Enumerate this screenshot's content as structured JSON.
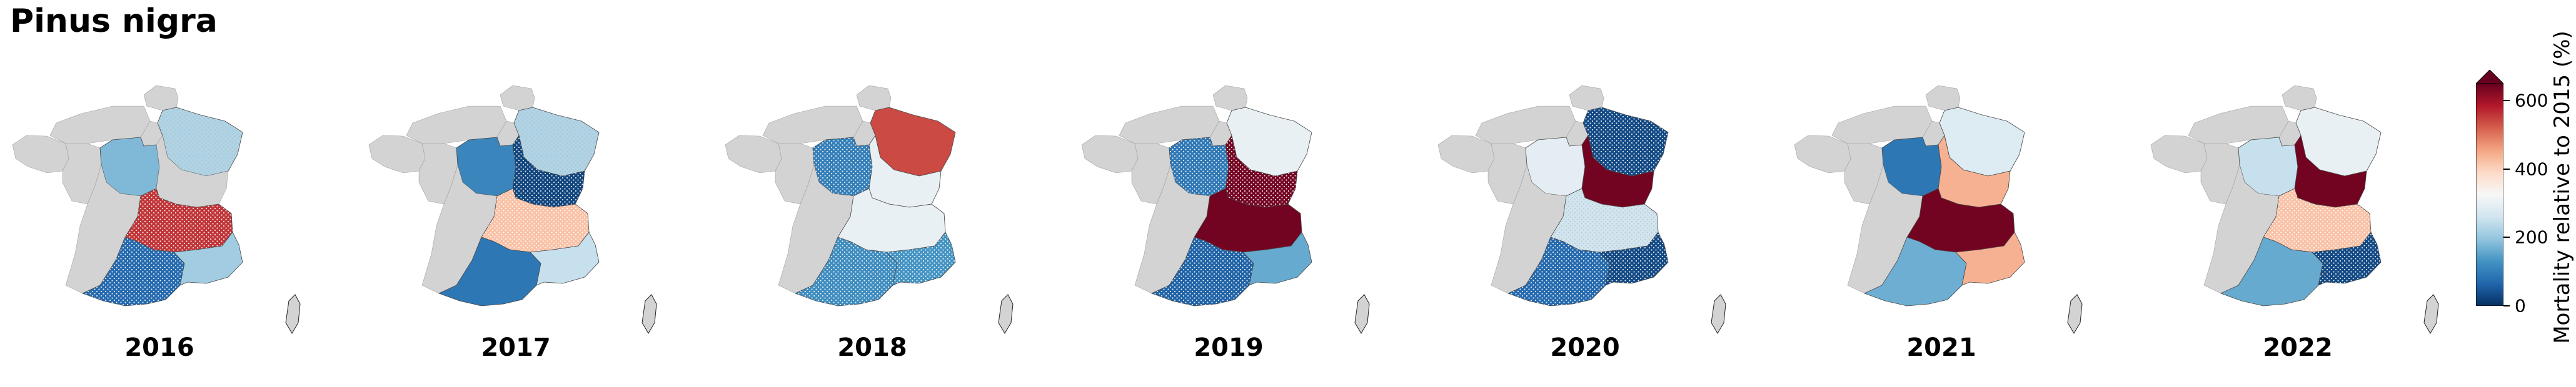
{
  "title": "Pinus nigra",
  "colorbar": {
    "label": "Mortality relative to 2015 (%)",
    "ticks": [
      0,
      200,
      400,
      600
    ],
    "min": 0,
    "max": 650,
    "extend": "max",
    "colormap": [
      "#053061",
      "#2166ac",
      "#4393c3",
      "#92c5de",
      "#d1e5f0",
      "#f7f7f7",
      "#fddbc7",
      "#f4a582",
      "#d6604d",
      "#b2182b",
      "#67001f"
    ]
  },
  "no_data_color": "#d3d3d3",
  "regions": [
    "Grand Est",
    "Centre-Val de Loire",
    "Bourgogne-Franche-Comté",
    "Auvergne-Rhône-Alpes",
    "Nouvelle-Aquitaine",
    "Occitanie",
    "Provence-Alpes-Côte d'Azur"
  ],
  "panels": [
    {
      "year": "2016",
      "values": {
        "Grand Est": 225,
        "Centre-Val de Loire": 180,
        "Bourgogne-Franche-Comté": null,
        "Auvergne-Rhône-Alpes": 560,
        "Nouvelle-Aquitaine": null,
        "Occitanie": 70,
        "Provence-Alpes-Côte d'Azur": 210
      },
      "hatched": [
        "Grand Est",
        "Auvergne-Rhône-Alpes",
        "Occitanie"
      ]
    },
    {
      "year": "2017",
      "values": {
        "Grand Est": 225,
        "Centre-Val de Loire": 110,
        "Bourgogne-Franche-Comté": 25,
        "Auvergne-Rhône-Alpes": 420,
        "Nouvelle-Aquitaine": null,
        "Occitanie": 90,
        "Provence-Alpes-Côte d'Azur": 250
      },
      "hatched": [
        "Grand Est",
        "Bourgogne-Franche-Comté",
        "Auvergne-Rhône-Alpes"
      ]
    },
    {
      "year": "2018",
      "values": {
        "Grand Est": 540,
        "Centre-Val de Loire": 100,
        "Bourgogne-Franche-Comté": 300,
        "Auvergne-Rhône-Alpes": 300,
        "Nouvelle-Aquitaine": null,
        "Occitanie": 120,
        "Provence-Alpes-Côte d'Azur": 130
      },
      "hatched": [
        "Centre-Val de Loire",
        "Occitanie",
        "Provence-Alpes-Côte d'Azur"
      ]
    },
    {
      "year": "2019",
      "values": {
        "Grand Est": 300,
        "Centre-Val de Loire": 90,
        "Bourgogne-Franche-Comté": 640,
        "Auvergne-Rhône-Alpes": 640,
        "Nouvelle-Aquitaine": null,
        "Occitanie": 60,
        "Provence-Alpes-Côte d'Azur": 160
      },
      "hatched": [
        "Centre-Val de Loire",
        "Bourgogne-Franche-Comté",
        "Occitanie"
      ]
    },
    {
      "year": "2020",
      "values": {
        "Grand Est": 30,
        "Centre-Val de Loire": 290,
        "Bourgogne-Franche-Comté": 640,
        "Auvergne-Rhône-Alpes": 260,
        "Nouvelle-Aquitaine": null,
        "Occitanie": 70,
        "Provence-Alpes-Côte d'Azur": 30
      },
      "hatched": [
        "Grand Est",
        "Auvergne-Rhône-Alpes",
        "Occitanie",
        "Provence-Alpes-Côte d'Azur"
      ]
    },
    {
      "year": "2021",
      "values": {
        "Grand Est": 280,
        "Centre-Val de Loire": 90,
        "Bourgogne-Franche-Comté": 440,
        "Auvergne-Rhône-Alpes": 640,
        "Nouvelle-Aquitaine": null,
        "Occitanie": 165,
        "Provence-Alpes-Côte d'Azur": 440
      },
      "hatched": []
    },
    {
      "year": "2022",
      "values": {
        "Grand Est": 300,
        "Centre-Val de Loire": 250,
        "Bourgogne-Franche-Comté": 640,
        "Auvergne-Rhône-Alpes": 420,
        "Nouvelle-Aquitaine": null,
        "Occitanie": 160,
        "Provence-Alpes-Côte d'Azur": 30
      },
      "hatched": [
        "Auvergne-Rhône-Alpes",
        "Provence-Alpes-Côte d'Azur"
      ]
    }
  ]
}
